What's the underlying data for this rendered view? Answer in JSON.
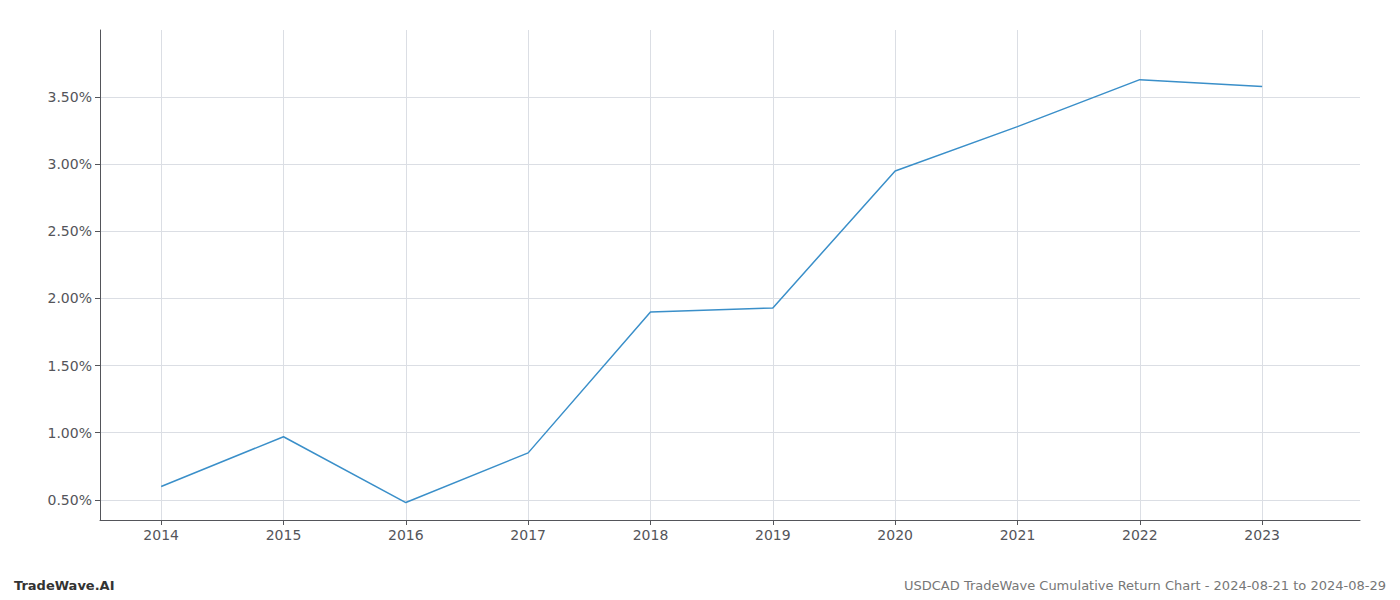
{
  "chart_data": {
    "type": "line",
    "x": [
      2014,
      2015,
      2016,
      2017,
      2018,
      2019,
      2020,
      2021,
      2022,
      2023
    ],
    "values": [
      0.006,
      0.0097,
      0.0048,
      0.0085,
      0.019,
      0.0193,
      0.0295,
      0.0328,
      0.0363,
      0.0358
    ],
    "color": "#3a8fc9",
    "xlim": [
      2013.5,
      2023.8
    ],
    "ylim": [
      0.0035,
      0.04
    ],
    "xticks": [
      2014,
      2015,
      2016,
      2017,
      2018,
      2019,
      2020,
      2021,
      2022,
      2023
    ],
    "yticks": [
      {
        "value": 0.005,
        "label": "0.50%"
      },
      {
        "value": 0.01,
        "label": "1.00%"
      },
      {
        "value": 0.015,
        "label": "1.50%"
      },
      {
        "value": 0.02,
        "label": "2.00%"
      },
      {
        "value": 0.025,
        "label": "2.50%"
      },
      {
        "value": 0.03,
        "label": "3.00%"
      },
      {
        "value": 0.035,
        "label": "3.50%"
      }
    ],
    "grid": true,
    "annotations": [
      "TradeWave.AI",
      "USDCAD TradeWave Cumulative Return Chart - 2024-08-21 to 2024-08-29"
    ]
  }
}
